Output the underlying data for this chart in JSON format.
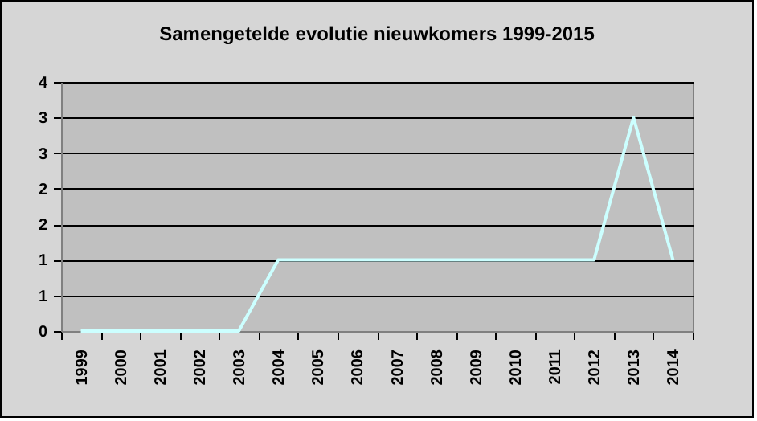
{
  "chart_data": {
    "type": "line",
    "title": "Samengetelde evolutie nieuwkomers 1999-2015",
    "categories": [
      "1999",
      "2000",
      "2001",
      "2002",
      "2003",
      "2004",
      "2005",
      "2006",
      "2007",
      "2008",
      "2009",
      "2010",
      "2011",
      "2012",
      "2013",
      "2014"
    ],
    "series": [
      {
        "color": "#ccffff",
        "values": [
          0,
          0,
          0,
          0,
          0,
          1,
          1,
          1,
          1,
          1,
          1,
          1,
          1,
          1,
          3,
          1
        ]
      }
    ],
    "ylim": [
      0,
      3.5
    ],
    "yticks": [
      0,
      {
        "value": 0.5,
        "label": "1"
      },
      1,
      {
        "value": 1.5,
        "label": "2"
      },
      2,
      {
        "value": 2.5,
        "label": "3"
      },
      3,
      {
        "value": 3.5,
        "label": "4"
      }
    ],
    "grid": "y",
    "marker": "none",
    "line_style": "solid"
  }
}
